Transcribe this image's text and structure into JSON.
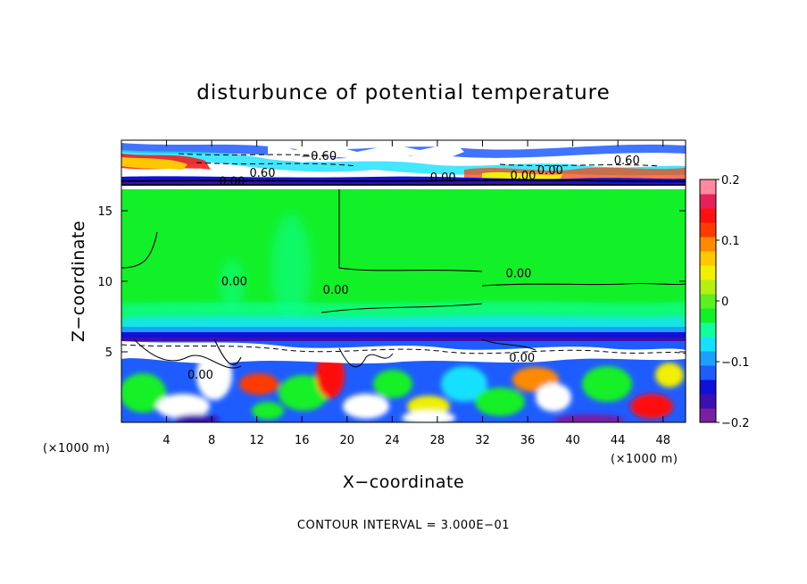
{
  "chart_data": {
    "type": "heatmap",
    "title": "disturbunce of potential temperature",
    "xlabel": "X−coordinate",
    "ylabel": "Z−coordinate",
    "x_unit": "(×1000 m)",
    "x_unit_right": "(×1000 m)",
    "z_unit": "(×1000 m)",
    "xlim": [
      0,
      50
    ],
    "ylim": [
      0,
      20
    ],
    "xticks": [
      4,
      8,
      12,
      16,
      20,
      24,
      28,
      32,
      36,
      40,
      44,
      48
    ],
    "yticks": [
      5,
      10,
      15
    ],
    "colorbar": {
      "range": [
        -0.2,
        0.2
      ],
      "ticks": [
        {
          "value": 0.2,
          "label": "0.2"
        },
        {
          "value": 0.1,
          "label": "0.1"
        },
        {
          "value": 0.0,
          "label": "0"
        },
        {
          "value": -0.1,
          "label": "−0.1"
        },
        {
          "value": -0.2,
          "label": "−0.2"
        }
      ],
      "colors": [
        "#7a1fa2",
        "#3b0fb0",
        "#1010d8",
        "#1e5cff",
        "#1aa0ff",
        "#17e0ff",
        "#10ff9a",
        "#12f028",
        "#5cf020",
        "#b6f010",
        "#f0f000",
        "#ffc800",
        "#ff8a00",
        "#ff3a00",
        "#ff1010",
        "#e8205a",
        "#ff8aa0"
      ]
    },
    "contour_interval": "CONTOUR INTERVAL = 3.000E−01",
    "contour_labels": [
      {
        "text": "−0.60",
        "x": 17.5,
        "z": 18.6
      },
      {
        "text": "0.60",
        "x": 12.5,
        "z": 17.4
      },
      {
        "text": "0.00",
        "x": 9.8,
        "z": 16.8
      },
      {
        "text": "0.00",
        "x": 28.5,
        "z": 17.1
      },
      {
        "text": "0.00",
        "x": 38.0,
        "z": 17.6
      },
      {
        "text": "0.00",
        "x": 35.6,
        "z": 17.2
      },
      {
        "text": "0.60",
        "x": 44.8,
        "z": 18.3
      },
      {
        "text": "0.00",
        "x": 35.2,
        "z": 10.3
      },
      {
        "text": "0.00",
        "x": 19.0,
        "z": 9.1
      },
      {
        "text": "0.00",
        "x": 7.0,
        "z": 3.1
      },
      {
        "text": "0.00",
        "x": 10.0,
        "z": 9.7
      },
      {
        "text": "0.00",
        "x": 35.5,
        "z": 4.3
      }
    ],
    "grid": false,
    "legend": "colorbar-right"
  }
}
